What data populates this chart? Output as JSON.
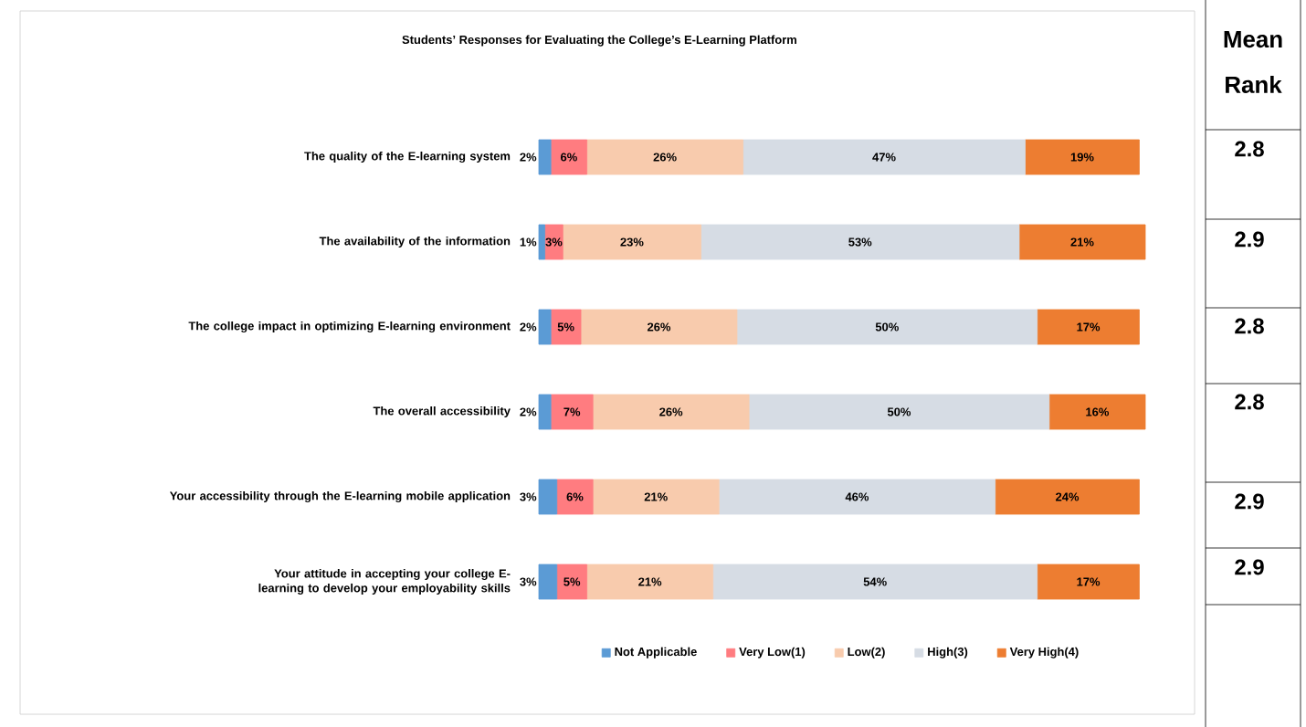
{
  "chart_data": [
    {
      "type": "bar",
      "orientation": "horizontal",
      "stacked": true,
      "title": "Students’ Responses for Evaluating the College’s E-Learning Platform",
      "categories": [
        "The quality of the E-learning system",
        "The availability of the information",
        "The college impact in optimizing E-learning environment",
        "The overall accessibility",
        "Your accessibility through the E-learning mobile application",
        "Your attitude in accepting your college E-learning to develop your employability skills"
      ],
      "series": [
        {
          "name": "Not Applicable",
          "color": "#5b9bd5",
          "values": [
            2,
            1,
            2,
            2,
            3,
            3
          ],
          "value_labels": [
            "2%",
            "1%",
            "2%",
            "2%",
            "3%",
            "3%"
          ]
        },
        {
          "name": "Very Low(1)",
          "color": "#ff7c80",
          "values": [
            6,
            3,
            5,
            7,
            6,
            5
          ],
          "value_labels": [
            "6%",
            "3%",
            "5%",
            "7%",
            "6%",
            "5%"
          ]
        },
        {
          "name": "Low(2)",
          "color": "#f8cbad",
          "values": [
            26,
            23,
            26,
            26,
            21,
            21
          ],
          "value_labels": [
            "26%",
            "23%",
            "26%",
            "26%",
            "21%",
            "21%"
          ]
        },
        {
          "name": "High(3)",
          "color": "#d6dce4",
          "values": [
            47,
            53,
            50,
            50,
            46,
            54
          ],
          "value_labels": [
            "47%",
            "53%",
            "50%",
            "50%",
            "46%",
            "54%"
          ]
        },
        {
          "name": "Very High(4)",
          "color": "#ed7d31",
          "values": [
            19,
            21,
            17,
            16,
            24,
            17
          ],
          "value_labels": [
            "19%",
            "21%",
            "17%",
            "16%",
            "24%",
            "17%"
          ]
        }
      ],
      "legend": "bottom"
    },
    {
      "type": "other",
      "title": "Mean Rank",
      "annotations": [
        "2.8",
        "2.9",
        "2.8",
        "2.8",
        "2.9",
        "2.9"
      ]
    }
  ]
}
